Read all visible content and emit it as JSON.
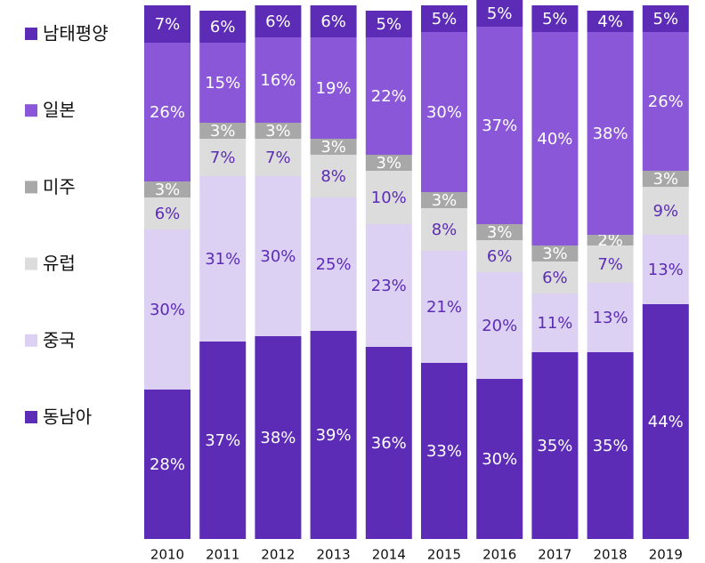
{
  "chart_data": {
    "type": "stacked_bar",
    "categories": [
      "2010",
      "2011",
      "2012",
      "2013",
      "2014",
      "2015",
      "2016",
      "2017",
      "2018",
      "2019"
    ],
    "ylim": [
      0,
      100
    ],
    "series": [
      {
        "name": "동남아",
        "color": "#5c2cb6",
        "values": [
          28,
          37,
          38,
          39,
          36,
          33,
          30,
          35,
          35,
          44
        ],
        "value_labels": [
          "28%",
          "37%",
          "38%",
          "39%",
          "36%",
          "33%",
          "30%",
          "35%",
          "35%",
          "44%"
        ]
      },
      {
        "name": "중국",
        "color": "#ddd1f3",
        "values": [
          30,
          31,
          30,
          25,
          23,
          21,
          20,
          11,
          13,
          13
        ],
        "value_labels": [
          "30%",
          "31%",
          "30%",
          "25%",
          "23%",
          "21%",
          "20%",
          "11%",
          "13%",
          "13%"
        ]
      },
      {
        "name": "유럽",
        "color": "#dcdcdc",
        "values": [
          6,
          7,
          7,
          8,
          10,
          8,
          6,
          6,
          7,
          9
        ],
        "value_labels": [
          "6%",
          "7%",
          "7%",
          "8%",
          "10%",
          "8%",
          "6%",
          "6%",
          "7%",
          "9%"
        ]
      },
      {
        "name": "미주",
        "color": "#a8a8a8",
        "values": [
          3,
          3,
          3,
          3,
          3,
          3,
          3,
          3,
          2,
          3
        ],
        "value_labels": [
          "3%",
          "3%",
          "3%",
          "3%",
          "3%",
          "3%",
          "3%",
          "3%",
          "2%",
          "3%"
        ]
      },
      {
        "name": "일본",
        "color": "#8b57d9",
        "values": [
          26,
          15,
          16,
          19,
          22,
          30,
          37,
          40,
          38,
          26
        ],
        "value_labels": [
          "26%",
          "15%",
          "16%",
          "19%",
          "22%",
          "30%",
          "37%",
          "40%",
          "38%",
          "26%"
        ]
      },
      {
        "name": "남태평양",
        "color": "#5c2cb6",
        "values": [
          7,
          6,
          6,
          6,
          5,
          5,
          5,
          5,
          4,
          5
        ],
        "value_labels": [
          "7%",
          "6%",
          "6%",
          "6%",
          "5%",
          "5%",
          "5%",
          "5%",
          "4%",
          "5%"
        ]
      }
    ]
  }
}
